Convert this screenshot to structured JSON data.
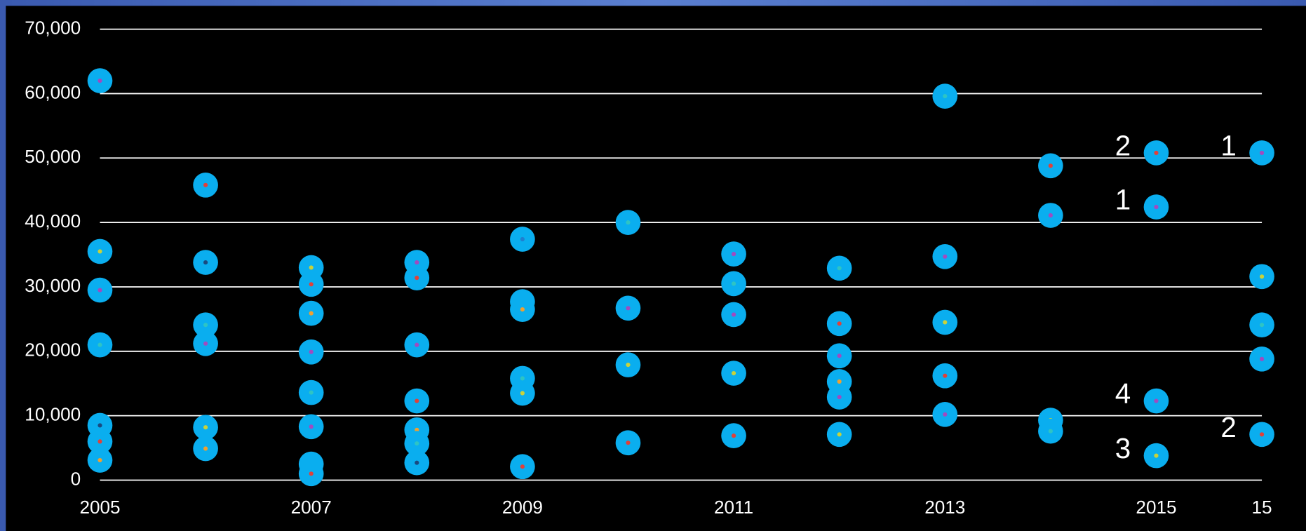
{
  "chart_data": {
    "type": "dot",
    "categories": [
      "2005",
      null,
      "2007",
      null,
      "2009",
      null,
      "2011",
      null,
      "2013",
      null,
      "2015",
      "15"
    ],
    "ylim": [
      0,
      70000
    ],
    "yticks": [
      0,
      {
        "value": 10000,
        "label": "10,000"
      },
      {
        "value": 20000,
        "label": "20,000"
      },
      {
        "value": 30000,
        "label": "30,000"
      },
      {
        "value": 40000,
        "label": "40,000"
      },
      {
        "value": 50000,
        "label": "50,000"
      },
      {
        "value": 60000,
        "label": "60,000"
      },
      {
        "value": 70000,
        "label": "70,000"
      }
    ],
    "grid": true,
    "color": "#0aaeef",
    "columns": [
      {
        "values": [
          62000,
          35500,
          29500,
          21000,
          8500,
          6000,
          3100
        ],
        "dot_colors": [
          "#a04bc0",
          "#c8d23a",
          "#a04bc0",
          "#2ec4c4",
          "#1a4a80",
          "#e0413a",
          "#f0a030"
        ]
      },
      {
        "values": [
          45800,
          33800,
          24100,
          21200,
          8200,
          4900
        ],
        "dot_colors": [
          "#e0413a",
          "#1a4a80",
          "#2ec4c4",
          "#a04bc0",
          "#c8d23a",
          "#f0a030"
        ]
      },
      {
        "values": [
          33000,
          30400,
          25900,
          19900,
          13600,
          8300,
          2500,
          1000
        ],
        "dot_colors": [
          "#c8d23a",
          "#e0413a",
          "#f0a030",
          "#a04bc0",
          "#2ec4c4",
          "#a04bc0",
          "#1a4a80",
          "#e0413a"
        ]
      },
      {
        "values": [
          33800,
          31400,
          21000,
          12300,
          7800,
          5700,
          2700
        ],
        "dot_colors": [
          "#a04bc0",
          "#e0413a",
          "#a04bc0",
          "#e0413a",
          "#f0a030",
          "#2ec4c4",
          "#1a4a80"
        ]
      },
      {
        "values": [
          37400,
          27700,
          26500,
          15800,
          13500,
          2100
        ],
        "dot_colors": [
          "#1f7fd0",
          "#2ec4c4",
          "#f0a030",
          "#2ec4c4",
          "#c8d23a",
          "#e0413a"
        ]
      },
      {
        "values": [
          40000,
          26700,
          17900,
          5800
        ],
        "dot_colors": [
          "#2ec4c4",
          "#a04bc0",
          "#c8d23a",
          "#e0413a"
        ]
      },
      {
        "values": [
          35100,
          30500,
          25700,
          16600,
          6900
        ],
        "dot_colors": [
          "#a04bc0",
          "#2ec4c4",
          "#a04bc0",
          "#c8d23a",
          "#e0413a"
        ]
      },
      {
        "values": [
          32900,
          24300,
          19300,
          15300,
          12900,
          7100
        ],
        "dot_colors": [
          "#2ec4c4",
          "#e0413a",
          "#a04bc0",
          "#f0a030",
          "#a04bc0",
          "#c8d23a"
        ]
      },
      {
        "values": [
          59600,
          34700,
          24500,
          16200,
          10200
        ],
        "dot_colors": [
          "#2ec4c4",
          "#a04bc0",
          "#c8d23a",
          "#e0413a",
          "#a04bc0"
        ]
      },
      {
        "values": [
          48800,
          41100,
          9300,
          7600
        ],
        "dot_colors": [
          "#e0413a",
          "#a04bc0",
          "#c8d23a",
          "#2ec4c4"
        ]
      },
      {
        "values": [
          50800,
          42400,
          12300,
          3800
        ],
        "dot_colors": [
          "#e0413a",
          "#a04bc0",
          "#a04bc0",
          "#c8d23a"
        ],
        "point_labels": [
          "2",
          "1",
          "4",
          "3"
        ]
      },
      {
        "values": [
          50800,
          31600,
          24100,
          18800,
          7100
        ],
        "dot_colors": [
          "#a04bc0",
          "#c8d23a",
          "#2ec4c4",
          "#a04bc0",
          "#e0413a"
        ],
        "point_labels": [
          "1",
          null,
          null,
          null,
          "2"
        ]
      }
    ]
  }
}
